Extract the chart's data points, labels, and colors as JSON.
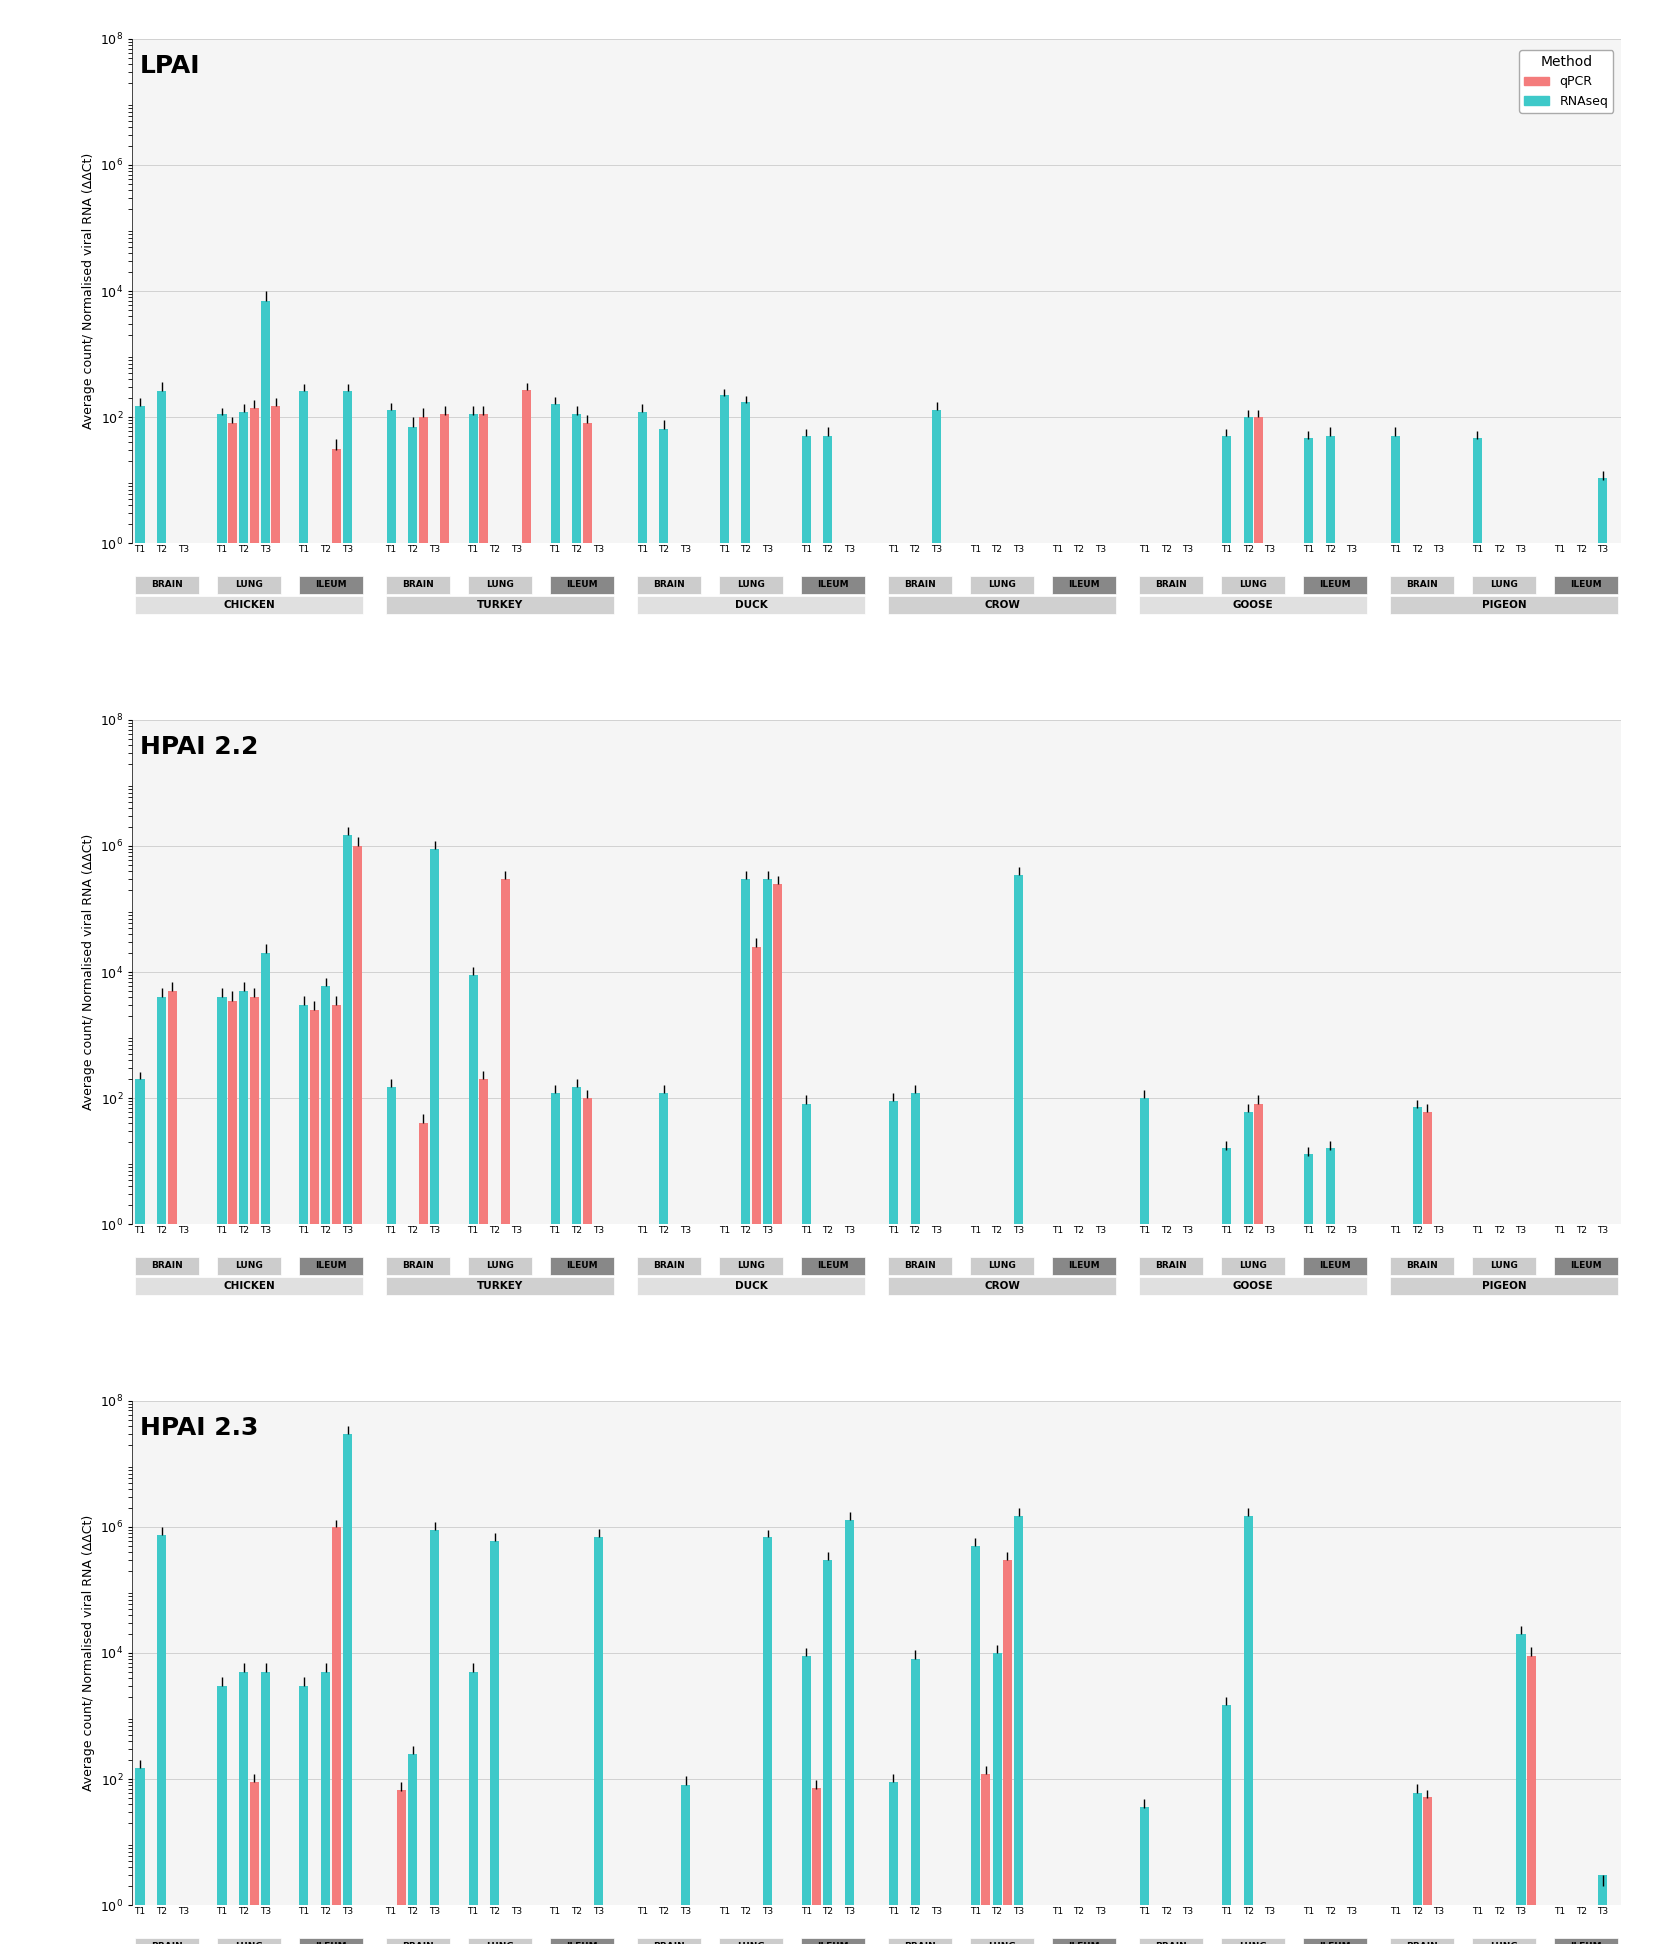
{
  "panels": [
    {
      "title": "LPAI",
      "species": [
        "CHICKEN",
        "TURKEY",
        "DUCK",
        "CROW",
        "GOOSE",
        "PIGEON"
      ],
      "tissues": [
        "BRAIN",
        "LUNG",
        "ILEUM"
      ],
      "timepoints": [
        "T1",
        "T2",
        "T3"
      ],
      "data": {
        "CHICKEN": {
          "BRAIN": {
            "rna": [
              150,
              260,
              null
            ],
            "pcr": [
              null,
              null,
              null
            ],
            "rna_err": [
              50,
              100,
              null
            ],
            "pcr_err": [
              null,
              null,
              null
            ]
          },
          "LUNG": {
            "rna": [
              110,
              120,
              7000
            ],
            "pcr": [
              80,
              140,
              150
            ],
            "rna_err": [
              30,
              40,
              3000
            ],
            "pcr_err": [
              20,
              50,
              50
            ]
          },
          "ILEUM": {
            "rna": [
              260,
              null,
              260
            ],
            "pcr": [
              null,
              30,
              null
            ],
            "rna_err": [
              80,
              null,
              80
            ],
            "pcr_err": [
              null,
              15,
              null
            ]
          }
        },
        "TURKEY": {
          "BRAIN": {
            "rna": [
              130,
              70,
              null
            ],
            "pcr": [
              null,
              100,
              110
            ],
            "rna_err": [
              40,
              30,
              null
            ],
            "pcr_err": [
              null,
              40,
              40
            ]
          },
          "LUNG": {
            "rna": [
              110,
              null,
              null
            ],
            "pcr": [
              110,
              null,
              270
            ],
            "rna_err": [
              40,
              null,
              null
            ],
            "pcr_err": [
              40,
              null,
              80
            ]
          },
          "ILEUM": {
            "rna": [
              160,
              110,
              null
            ],
            "pcr": [
              null,
              80,
              null
            ],
            "rna_err": [
              50,
              40,
              null
            ],
            "pcr_err": [
              null,
              30,
              null
            ]
          }
        },
        "DUCK": {
          "BRAIN": {
            "rna": [
              120,
              65,
              null
            ],
            "pcr": [
              null,
              null,
              null
            ],
            "rna_err": [
              40,
              25,
              null
            ],
            "pcr_err": [
              null,
              null,
              null
            ]
          },
          "LUNG": {
            "rna": [
              220,
              170,
              null
            ],
            "pcr": [
              null,
              null,
              null
            ],
            "rna_err": [
              60,
              50,
              null
            ],
            "pcr_err": [
              null,
              null,
              null
            ]
          },
          "ILEUM": {
            "rna": [
              50,
              50,
              null
            ],
            "pcr": [
              null,
              null,
              null
            ],
            "rna_err": [
              15,
              20,
              null
            ],
            "pcr_err": [
              null,
              null,
              null
            ]
          }
        },
        "CROW": {
          "BRAIN": {
            "rna": [
              null,
              null,
              null
            ],
            "pcr": [
              null,
              null,
              null
            ],
            "rna_err": [
              null,
              null,
              null
            ],
            "pcr_err": [
              null,
              null,
              null
            ]
          },
          "LUNG": {
            "rna": [
              null,
              null,
              null
            ],
            "pcr": [
              null,
              null,
              null
            ],
            "rna_err": [
              null,
              null,
              null
            ],
            "pcr_err": [
              null,
              null,
              null
            ]
          },
          "ILEUM": {
            "rna": [
              null,
              null,
              null
            ],
            "pcr": [
              null,
              null,
              null
            ],
            "rna_err": [
              null,
              null,
              null
            ],
            "pcr_err": [
              null,
              null,
              null
            ]
          }
        },
        "GOOSE": {
          "BRAIN": {
            "rna": [
              null,
              null,
              null
            ],
            "pcr": [
              null,
              null,
              null
            ],
            "rna_err": [
              null,
              null,
              null
            ],
            "pcr_err": [
              null,
              null,
              null
            ]
          },
          "LUNG": {
            "rna": [
              50,
              100,
              null
            ],
            "pcr": [
              null,
              100,
              null
            ],
            "rna_err": [
              15,
              30,
              null
            ],
            "pcr_err": [
              null,
              30,
              null
            ]
          },
          "ILEUM": {
            "rna": [
              45,
              50,
              null
            ],
            "pcr": [
              null,
              null,
              null
            ],
            "rna_err": [
              15,
              20,
              null
            ],
            "pcr_err": [
              null,
              null,
              null
            ]
          }
        },
        "PIGEON": {
          "BRAIN": {
            "rna": [
              50,
              null,
              null
            ],
            "pcr": [
              null,
              null,
              null
            ],
            "rna_err": [
              20,
              null,
              null
            ],
            "pcr_err": [
              null,
              null,
              null
            ]
          },
          "LUNG": {
            "rna": [
              45,
              null,
              null
            ],
            "pcr": [
              null,
              null,
              null
            ],
            "rna_err": [
              15,
              null,
              null
            ],
            "pcr_err": [
              null,
              null,
              null
            ]
          },
          "ILEUM": {
            "rna": [
              null,
              null,
              10
            ],
            "pcr": [
              null,
              null,
              null
            ],
            "rna_err": [
              null,
              null,
              4
            ],
            "pcr_err": [
              null,
              null,
              null
            ]
          }
        }
      }
    }
  ],
  "color_rna": "#3EC9C9",
  "color_pcr": "#F47C7C",
  "bar_width": 0.35,
  "ylim": [
    1,
    100000000.0
  ],
  "ylabel": "Average count/ Normalised viral RNA (ΔΔCt)",
  "background_color": "#ffffff",
  "grid_color": "#cccccc"
}
